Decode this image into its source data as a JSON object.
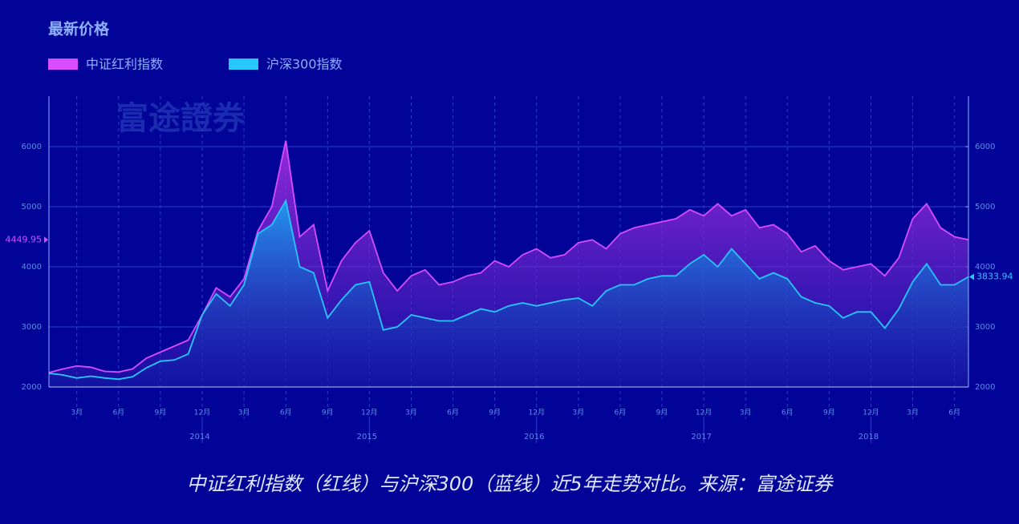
{
  "chart_data": {
    "type": "area-line",
    "title": "最新价格",
    "watermark": "富途證券",
    "caption": "中证红利指数（红线）与沪深300（蓝线）近5年走势对比。来源：富途证券",
    "x": [
      "2014-01",
      "2014-02",
      "2014-03",
      "2014-04",
      "2014-05",
      "2014-06",
      "2014-07",
      "2014-08",
      "2014-09",
      "2014-10",
      "2014-11",
      "2014-12",
      "2015-01",
      "2015-02",
      "2015-03",
      "2015-04",
      "2015-05",
      "2015-06",
      "2015-07",
      "2015-08",
      "2015-09",
      "2015-10",
      "2015-11",
      "2015-12",
      "2016-01",
      "2016-02",
      "2016-03",
      "2016-04",
      "2016-05",
      "2016-06",
      "2016-07",
      "2016-08",
      "2016-09",
      "2016-10",
      "2016-11",
      "2016-12",
      "2017-01",
      "2017-02",
      "2017-03",
      "2017-04",
      "2017-05",
      "2017-06",
      "2017-07",
      "2017-08",
      "2017-09",
      "2017-10",
      "2017-11",
      "2017-12",
      "2018-01",
      "2018-02",
      "2018-03",
      "2018-04",
      "2018-05",
      "2018-06",
      "2018-07",
      "2018-08",
      "2018-09",
      "2018-10",
      "2018-11",
      "2018-12",
      "2019-01",
      "2019-02",
      "2019-03",
      "2019-04",
      "2019-05",
      "2019-06",
      "2019-07"
    ],
    "series": [
      {
        "name": "中证红利指数",
        "color": "#d94cff",
        "values": [
          2240,
          2300,
          2350,
          2330,
          2260,
          2250,
          2300,
          2480,
          2580,
          2680,
          2780,
          3200,
          3650,
          3500,
          3800,
          4600,
          5000,
          6100,
          4500,
          4700,
          3600,
          4100,
          4400,
          4600,
          3900,
          3600,
          3850,
          3950,
          3700,
          3750,
          3850,
          3900,
          4100,
          4000,
          4200,
          4300,
          4150,
          4200,
          4400,
          4450,
          4300,
          4550,
          4650,
          4700,
          4750,
          4800,
          4950,
          4850,
          5050,
          4850,
          4950,
          4650,
          4700,
          4550,
          4250,
          4350,
          4100,
          3950,
          4000,
          4050,
          3850,
          4150,
          4800,
          5050,
          4650,
          4500,
          4449.95
        ]
      },
      {
        "name": "沪深300指数",
        "color": "#27c8ff",
        "values": [
          2230,
          2200,
          2150,
          2180,
          2150,
          2130,
          2170,
          2320,
          2430,
          2450,
          2550,
          3200,
          3550,
          3350,
          3700,
          4550,
          4700,
          5100,
          4000,
          3900,
          3150,
          3450,
          3700,
          3750,
          2950,
          3000,
          3200,
          3150,
          3100,
          3100,
          3200,
          3300,
          3250,
          3350,
          3400,
          3350,
          3400,
          3450,
          3480,
          3350,
          3600,
          3700,
          3700,
          3800,
          3850,
          3850,
          4050,
          4200,
          4000,
          4300,
          4050,
          3800,
          3900,
          3800,
          3500,
          3400,
          3350,
          3150,
          3250,
          3250,
          2980,
          3300,
          3750,
          4050,
          3700,
          3700,
          3833.94
        ]
      }
    ],
    "ylim": [
      2000,
      6840
    ],
    "yticks": [
      2000,
      3000,
      4000,
      5000,
      6000
    ],
    "y2lim": [
      2000,
      6840
    ],
    "y2ticks": [
      2000,
      3000,
      4000,
      5000,
      6000
    ],
    "xticks": [
      {
        "value": "2014-03",
        "label": "3月"
      },
      {
        "value": "2014-06",
        "label": "6月"
      },
      {
        "value": "2014-09",
        "label": "9月"
      },
      {
        "value": "2014-12",
        "label": "12月"
      },
      {
        "value": "2015-03",
        "label": "3月"
      },
      {
        "value": "2015-06",
        "label": "6月"
      },
      {
        "value": "2015-09",
        "label": "9月"
      },
      {
        "value": "2015-12",
        "label": "12月"
      },
      {
        "value": "2016-03",
        "label": "3月"
      },
      {
        "value": "2016-06",
        "label": "6月"
      },
      {
        "value": "2016-09",
        "label": "9月"
      },
      {
        "value": "2016-12",
        "label": "12月"
      },
      {
        "value": "2017-03",
        "label": "3月"
      },
      {
        "value": "2017-06",
        "label": "6月"
      },
      {
        "value": "2017-09",
        "label": "9月"
      },
      {
        "value": "2017-12",
        "label": "12月"
      },
      {
        "value": "2018-03",
        "label": "3月"
      },
      {
        "value": "2018-06",
        "label": "6月"
      },
      {
        "value": "2018-09",
        "label": "9月"
      },
      {
        "value": "2018-12",
        "label": "12月"
      },
      {
        "value": "2019-03",
        "label": "3月"
      },
      {
        "value": "2019-06",
        "label": "6月"
      }
    ],
    "year_ticks": [
      {
        "value": "2014-12",
        "label": "2014"
      },
      {
        "value": "2015-12",
        "label": "2015"
      },
      {
        "value": "2016-12",
        "label": "2016"
      },
      {
        "value": "2017-12",
        "label": "2017"
      },
      {
        "value": "2018-12",
        "label": "2018"
      }
    ],
    "grid": true
  }
}
